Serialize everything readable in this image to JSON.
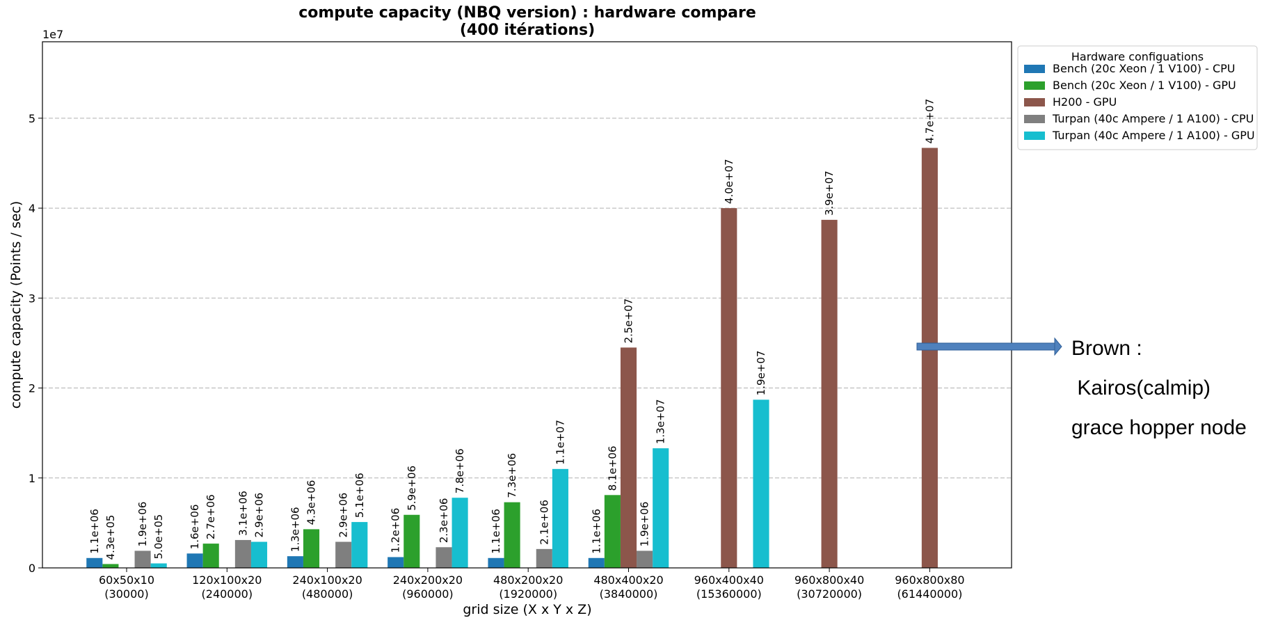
{
  "chart_data": {
    "type": "bar",
    "title": "compute capacity (NBQ version) : hardware compare",
    "subtitle": "(400 itérations)",
    "xlabel": "grid size (X x Y x Z)",
    "ylabel": "compute capacity (Points / sec)",
    "y_offset_label": "1e7",
    "ylim": [
      0,
      58500000
    ],
    "yticks": [
      0,
      10000000,
      20000000,
      30000000,
      40000000,
      50000000
    ],
    "ytick_labels": [
      "0",
      "1",
      "2",
      "3",
      "4",
      "5"
    ],
    "grid": "y-dashed",
    "legend_title": "Hardware configuations",
    "legend_position": "outside-top-right",
    "categories": [
      {
        "label": "60x50x10",
        "sub": "(30000)"
      },
      {
        "label": "120x100x20",
        "sub": "(240000)"
      },
      {
        "label": "240x100x20",
        "sub": "(480000)"
      },
      {
        "label": "240x200x20",
        "sub": "(960000)"
      },
      {
        "label": "480x200x20",
        "sub": "(1920000)"
      },
      {
        "label": "480x400x20",
        "sub": "(3840000)"
      },
      {
        "label": "960x400x40",
        "sub": "(15360000)"
      },
      {
        "label": "960x800x40",
        "sub": "(30720000)"
      },
      {
        "label": "960x800x80",
        "sub": "(61440000)"
      }
    ],
    "series": [
      {
        "name": "Bench (20c Xeon / 1 V100) - CPU",
        "color": "#1f77b4",
        "values": [
          1100000,
          1600000,
          1300000,
          1200000,
          1100000,
          1100000,
          null,
          null,
          null
        ],
        "labels": [
          "1.1e+06",
          "1.6e+06",
          "1.3e+06",
          "1.2e+06",
          "1.1e+06",
          "1.1e+06",
          null,
          null,
          null
        ]
      },
      {
        "name": "Bench (20c Xeon / 1 V100) - GPU",
        "color": "#2ca02c",
        "values": [
          430000,
          2700000,
          4300000,
          5900000,
          7300000,
          8100000,
          null,
          null,
          null
        ],
        "labels": [
          "4.3e+05",
          "2.7e+06",
          "4.3e+06",
          "5.9e+06",
          "7.3e+06",
          "8.1e+06",
          null,
          null,
          null
        ]
      },
      {
        "name": "H200 - GPU",
        "color": "#8c564b",
        "values": [
          null,
          null,
          null,
          null,
          null,
          24500000,
          40000000,
          38700000,
          46700000
        ],
        "labels": [
          null,
          null,
          null,
          null,
          null,
          "2.5e+07",
          "4.0e+07",
          "3.9e+07",
          "4.7e+07"
        ]
      },
      {
        "name": "Turpan (40c Ampere / 1 A100) - CPU",
        "color": "#7f7f7f",
        "values": [
          1900000,
          3100000,
          2900000,
          2300000,
          2100000,
          1900000,
          null,
          null,
          null
        ],
        "labels": [
          "1.9e+06",
          "3.1e+06",
          "2.9e+06",
          "2.3e+06",
          "2.1e+06",
          "1.9e+06",
          null,
          null,
          null
        ]
      },
      {
        "name": "Turpan (40c Ampere / 1 A100) - GPU",
        "color": "#17becf",
        "values": [
          500000,
          2900000,
          5100000,
          7800000,
          11000000,
          13300000,
          18700000,
          null,
          null
        ],
        "labels": [
          "5.0e+05",
          "2.9e+06",
          "5.1e+06",
          "7.8e+06",
          "1.1e+07",
          "1.3e+07",
          "1.9e+07",
          null,
          null
        ]
      }
    ]
  },
  "annotation": {
    "lines": [
      "Brown :",
      " Kairos(calmip)",
      "grace hopper node"
    ],
    "arrow_color": "#4f81bd"
  }
}
